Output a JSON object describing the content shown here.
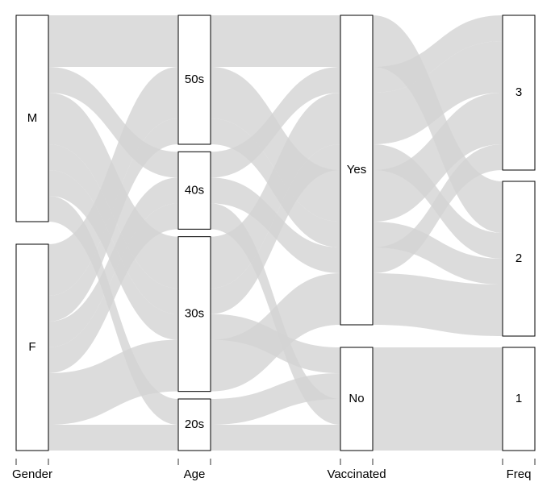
{
  "chart_data": {
    "type": "alluvial",
    "axes": [
      {
        "label": "Gender",
        "strata": [
          "M",
          "F"
        ]
      },
      {
        "label": "Age",
        "strata": [
          "50s",
          "40s",
          "30s",
          "20s"
        ]
      },
      {
        "label": "Vaccinated",
        "strata": [
          "Yes",
          "No"
        ]
      },
      {
        "label": "Freq",
        "strata": [
          "3",
          "2",
          "1"
        ]
      }
    ],
    "color": "#d3d3d3",
    "alluvia": [
      {
        "path": [
          "M",
          "50s",
          "Yes",
          "2"
        ],
        "n": 2
      },
      {
        "path": [
          "M",
          "40s",
          "Yes",
          "3"
        ],
        "n": 1
      },
      {
        "path": [
          "M",
          "30s",
          "Yes",
          "3"
        ],
        "n": 2
      },
      {
        "path": [
          "M",
          "30s",
          "Yes",
          "2"
        ],
        "n": 1
      },
      {
        "path": [
          "M",
          "30s",
          "No",
          "1"
        ],
        "n": 1
      },
      {
        "path": [
          "M",
          "20s",
          "No",
          "1"
        ],
        "n": 1
      },
      {
        "path": [
          "F",
          "50s",
          "Yes",
          "3"
        ],
        "n": 2
      },
      {
        "path": [
          "F",
          "50s",
          "Yes",
          "2"
        ],
        "n": 1
      },
      {
        "path": [
          "F",
          "40s",
          "Yes",
          "3"
        ],
        "n": 1
      },
      {
        "path": [
          "F",
          "40s",
          "No",
          "1"
        ],
        "n": 1
      },
      {
        "path": [
          "F",
          "30s",
          "Yes",
          "2"
        ],
        "n": 2
      },
      {
        "path": [
          "F",
          "20s",
          "No",
          "1"
        ],
        "n": 1
      }
    ]
  }
}
